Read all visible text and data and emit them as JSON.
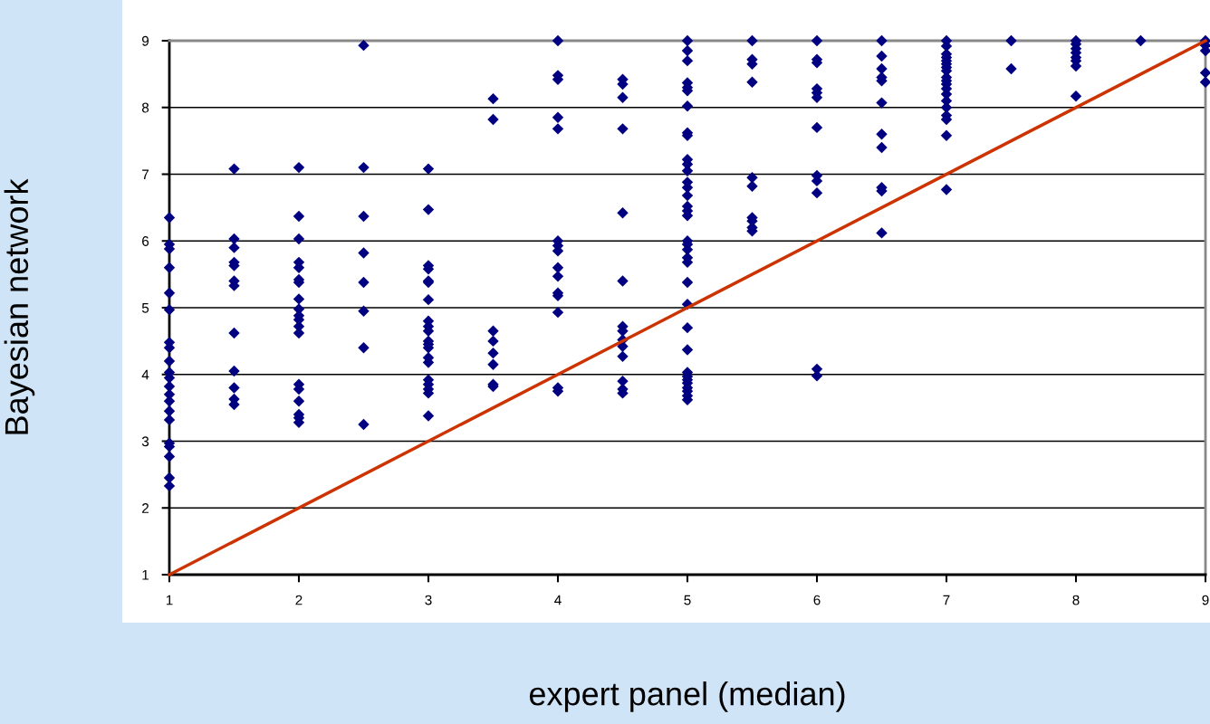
{
  "chart_data": {
    "type": "scatter",
    "xlabel": "expert panel (median)",
    "ylabel": "Bayesian network",
    "xlim": [
      1,
      9
    ],
    "ylim": [
      1,
      9
    ],
    "xticks": [
      1,
      2,
      3,
      4,
      5,
      6,
      7,
      8,
      9
    ],
    "yticks": [
      1,
      2,
      3,
      4,
      5,
      6,
      7,
      8,
      9
    ],
    "grid": "y",
    "marker": "diamond",
    "legend": false,
    "series": [
      {
        "color": "#000080",
        "x": [
          1,
          1,
          1,
          1,
          1,
          1,
          1,
          1,
          1,
          1,
          1,
          1,
          1,
          1,
          1,
          1,
          1,
          1,
          1,
          1,
          1,
          1.5,
          1.5,
          1.5,
          1.5,
          1.5,
          1.5,
          1.5,
          1.5,
          1.5,
          1.5,
          1.5,
          1.5,
          2,
          2,
          2,
          2,
          2,
          2,
          2,
          2,
          2,
          2,
          2,
          2,
          2,
          2,
          2,
          2,
          2,
          2,
          2,
          2.5,
          2.5,
          2.5,
          2.5,
          2.5,
          2.5,
          2.5,
          2.5,
          3,
          3,
          3,
          3,
          3,
          3,
          3,
          3,
          3,
          3,
          3,
          3,
          3,
          3,
          3,
          3,
          3,
          3,
          3,
          3,
          3.5,
          3.5,
          3.5,
          3.5,
          3.5,
          3.5,
          3.5,
          3.5,
          4,
          4,
          4,
          4,
          4,
          4,
          4,
          4,
          4,
          4,
          4,
          4,
          4,
          4,
          4,
          4.5,
          4.5,
          4.5,
          4.5,
          4.5,
          4.5,
          4.5,
          4.5,
          4.5,
          4.5,
          4.5,
          4.5,
          4.5,
          4.5,
          5,
          5,
          5,
          5,
          5,
          5,
          5,
          5,
          5,
          5,
          5,
          5,
          5,
          5,
          5,
          5,
          5,
          5,
          5,
          5,
          5,
          5,
          5,
          5,
          5,
          5,
          5,
          5,
          5,
          5,
          5,
          5,
          5,
          5,
          5,
          5.5,
          5.5,
          5.5,
          5.5,
          5.5,
          5.5,
          5.5,
          5.5,
          5.5,
          5.5,
          6,
          6,
          6,
          6,
          6,
          6,
          6,
          6,
          6,
          6,
          6,
          6,
          6.5,
          6.5,
          6.5,
          6.5,
          6.5,
          6.5,
          6.5,
          6.5,
          6.5,
          6.5,
          6.5,
          7,
          7,
          7,
          7,
          7,
          7,
          7,
          7,
          7,
          7,
          7,
          7,
          7,
          7,
          7,
          7,
          7,
          7,
          7,
          7.5,
          7.5,
          8,
          8,
          8,
          8,
          8,
          8,
          8,
          8,
          8.5,
          9,
          9,
          9,
          9,
          9
        ],
        "values": [
          6.35,
          5.95,
          5.88,
          5.6,
          5.22,
          4.97,
          4.48,
          4.4,
          4.2,
          4.03,
          3.95,
          3.82,
          3.7,
          3.6,
          3.45,
          3.32,
          2.97,
          2.92,
          2.77,
          2.45,
          2.33,
          7.08,
          6.03,
          5.9,
          5.68,
          5.63,
          5.4,
          5.33,
          4.62,
          4.05,
          3.8,
          3.63,
          3.55,
          7.1,
          6.37,
          6.03,
          5.68,
          5.6,
          5.42,
          5.38,
          5.13,
          4.98,
          4.88,
          4.82,
          4.72,
          4.62,
          3.85,
          3.78,
          3.6,
          3.4,
          3.35,
          3.28,
          8.93,
          7.1,
          6.37,
          5.82,
          5.38,
          4.95,
          4.4,
          3.25,
          7.08,
          6.47,
          5.63,
          5.58,
          5.4,
          5.38,
          5.12,
          4.8,
          4.72,
          4.65,
          4.5,
          4.45,
          4.4,
          4.25,
          4.18,
          3.92,
          3.85,
          3.78,
          3.72,
          3.38,
          8.13,
          7.82,
          4.65,
          4.5,
          4.32,
          4.15,
          3.85,
          3.82,
          9,
          8.48,
          8.42,
          7.85,
          7.68,
          6.0,
          5.93,
          5.85,
          5.6,
          5.47,
          5.22,
          5.18,
          4.93,
          3.8,
          3.75,
          8.42,
          8.35,
          8.15,
          7.68,
          6.42,
          5.4,
          4.72,
          4.65,
          4.52,
          4.42,
          4.27,
          3.9,
          3.78,
          3.72,
          9,
          8.85,
          8.7,
          8.37,
          8.3,
          8.25,
          8.02,
          7.62,
          7.58,
          7.22,
          7.15,
          7.05,
          6.88,
          6.8,
          6.68,
          6.52,
          6.45,
          6.38,
          6.0,
          5.95,
          5.87,
          5.75,
          5.68,
          5.38,
          5.05,
          4.7,
          4.37,
          4.03,
          3.97,
          3.92,
          3.87,
          3.8,
          3.75,
          3.68,
          3.62,
          9,
          8.72,
          8.65,
          8.38,
          6.95,
          6.82,
          6.35,
          6.3,
          6.2,
          6.15,
          9,
          8.72,
          8.67,
          8.28,
          8.22,
          8.15,
          7.7,
          6.98,
          6.9,
          6.72,
          4.08,
          3.98,
          9,
          8.77,
          8.58,
          8.45,
          8.4,
          8.07,
          7.6,
          7.4,
          6.8,
          6.75,
          6.12,
          9,
          8.92,
          8.8,
          8.75,
          8.7,
          8.65,
          8.6,
          8.55,
          8.45,
          8.4,
          8.35,
          8.28,
          8.2,
          8.1,
          8.0,
          7.88,
          7.82,
          7.58,
          6.77,
          9,
          8.58,
          9,
          8.95,
          8.88,
          8.82,
          8.75,
          8.7,
          8.62,
          8.17,
          9,
          9,
          8.93,
          8.85,
          8.52,
          8.38
        ]
      },
      {
        "type": "line",
        "color": "#cc3300",
        "marker": "none",
        "line_style": "solid",
        "x": [
          1,
          9
        ],
        "values": [
          1,
          9
        ]
      }
    ]
  }
}
